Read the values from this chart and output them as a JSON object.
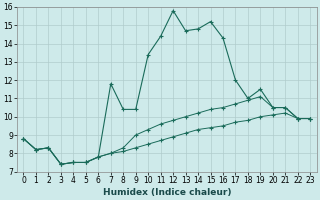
{
  "xlabel": "Humidex (Indice chaleur)",
  "bg_color": "#ceeaea",
  "grid_color": "#b0cccc",
  "line_color": "#1a6b5a",
  "xlim": [
    -0.5,
    23.5
  ],
  "ylim": [
    7,
    16
  ],
  "xtick_labels": [
    "0",
    "1",
    "2",
    "3",
    "4",
    "5",
    "6",
    "7",
    "8",
    "9",
    "10",
    "11",
    "12",
    "13",
    "14",
    "15",
    "16",
    "17",
    "18",
    "19",
    "20",
    "21",
    "22",
    "23"
  ],
  "ytick_labels": [
    "7",
    "8",
    "9",
    "10",
    "11",
    "12",
    "13",
    "14",
    "15",
    "16"
  ],
  "yticks": [
    7,
    8,
    9,
    10,
    11,
    12,
    13,
    14,
    15,
    16
  ],
  "series1": [
    8.8,
    8.2,
    8.3,
    7.4,
    7.5,
    7.5,
    7.8,
    11.8,
    10.4,
    10.4,
    13.4,
    14.4,
    15.8,
    14.7,
    14.8,
    15.2,
    14.3,
    12.0,
    11.0,
    11.5,
    10.5,
    10.5,
    9.9,
    9.9
  ],
  "series2": [
    8.8,
    8.2,
    8.3,
    7.4,
    7.5,
    7.5,
    7.8,
    8.0,
    8.3,
    9.0,
    9.3,
    9.6,
    9.8,
    10.0,
    10.2,
    10.4,
    10.5,
    10.7,
    10.9,
    11.1,
    10.5,
    10.5,
    9.9,
    9.9
  ],
  "series3": [
    8.8,
    8.2,
    8.3,
    7.4,
    7.5,
    7.5,
    7.8,
    8.0,
    8.1,
    8.3,
    8.5,
    8.7,
    8.9,
    9.1,
    9.3,
    9.4,
    9.5,
    9.7,
    9.8,
    10.0,
    10.1,
    10.2,
    9.9,
    9.9
  ]
}
